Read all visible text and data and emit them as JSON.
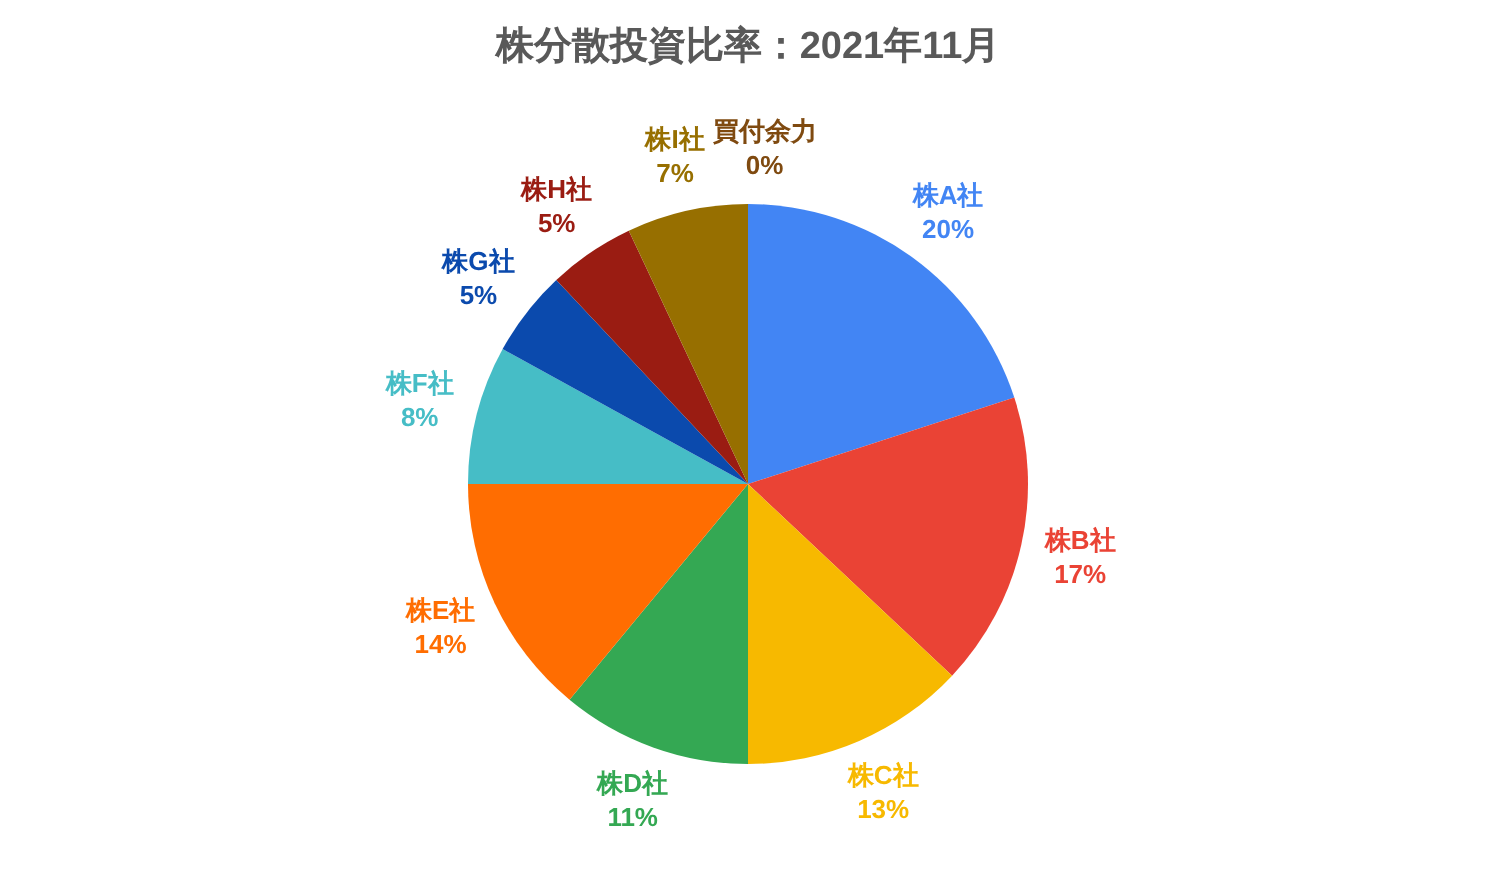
{
  "chart_data": {
    "type": "pie",
    "title": "株分散投資比率：2021年11月",
    "categories": [
      "株A社",
      "株B社",
      "株C社",
      "株D社",
      "株E社",
      "株F社",
      "株G社",
      "株H社",
      "株I社",
      "買付余力"
    ],
    "values": [
      20,
      17,
      13,
      11,
      14,
      8,
      5,
      5,
      7,
      0
    ],
    "value_labels": [
      "20%",
      "17%",
      "13%",
      "11%",
      "14%",
      "8%",
      "5%",
      "5%",
      "7%",
      "0%"
    ],
    "colors": [
      "#4285f4",
      "#ea4335",
      "#f7b900",
      "#34a853",
      "#ff6d01",
      "#46bdc6",
      "#0b4aad",
      "#9a1c12",
      "#976f00",
      "#7f4a10"
    ]
  }
}
